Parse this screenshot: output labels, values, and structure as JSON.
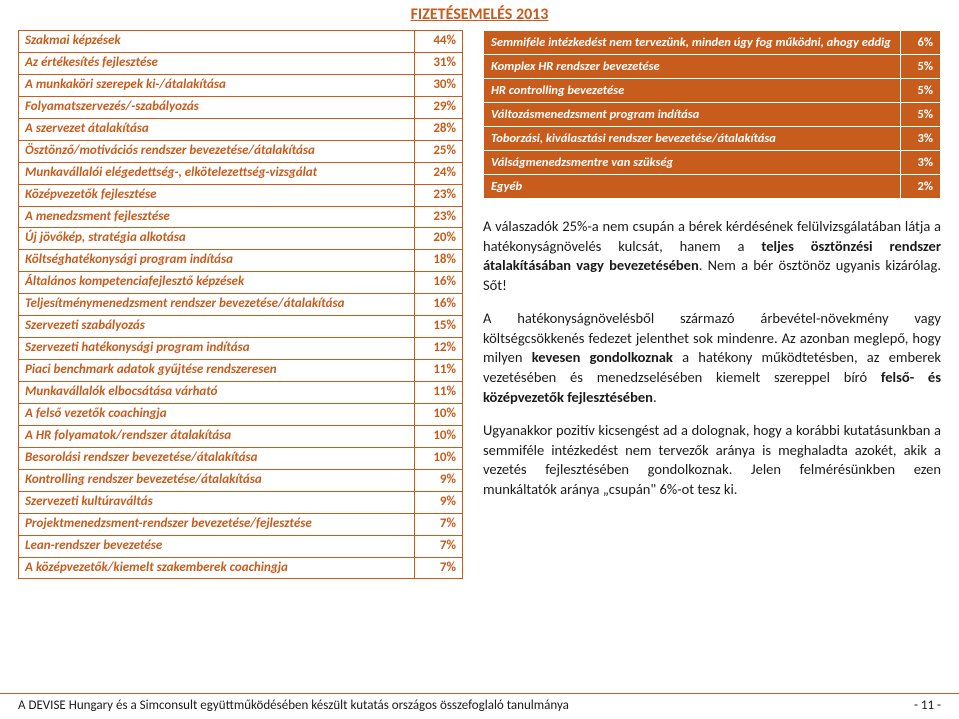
{
  "header": {
    "title": "FIZETÉSEMELÉS 2013"
  },
  "leftTable": {
    "rows": [
      {
        "label": "Szakmai képzések",
        "val": "44%"
      },
      {
        "label": "Az értékesítés fejlesztése",
        "val": "31%"
      },
      {
        "label": "A munkaköri szerepek ki-/átalakítása",
        "val": "30%"
      },
      {
        "label": "Folyamatszervezés/-szabályozás",
        "val": "29%"
      },
      {
        "label": "A szervezet átalakítása",
        "val": "28%"
      },
      {
        "label": "Ösztönző/motivációs rendszer bevezetése/átalakítása",
        "val": "25%"
      },
      {
        "label": "Munkavállalói elégedettség-, elkötelezettség-vizsgálat",
        "val": "24%"
      },
      {
        "label": "Középvezetők fejlesztése",
        "val": "23%"
      },
      {
        "label": "A menedzsment fejlesztése",
        "val": "23%"
      },
      {
        "label": "Új jövőkép, stratégia alkotása",
        "val": "20%"
      },
      {
        "label": "Költséghatékonysági program indítása",
        "val": "18%"
      },
      {
        "label": "Általános kompetenciafejlesztő képzések",
        "val": "16%"
      },
      {
        "label": "Teljesítménymenedzsment rendszer bevezetése/átalakítása",
        "val": "16%"
      },
      {
        "label": "Szervezeti szabályozás",
        "val": "15%"
      },
      {
        "label": "Szervezeti hatékonysági program indítása",
        "val": "12%"
      },
      {
        "label": "Piaci benchmark adatok gyűjtése rendszeresen",
        "val": "11%"
      },
      {
        "label": "Munkavállalók elbocsátása várható",
        "val": "11%"
      },
      {
        "label": "A felső vezetők coachingja",
        "val": "10%"
      },
      {
        "label": "A HR folyamatok/rendszer átalakítása",
        "val": "10%"
      },
      {
        "label": "Besorolási rendszer bevezetése/átalakítása",
        "val": "10%"
      },
      {
        "label": "Kontrolling rendszer bevezetése/átalakítása",
        "val": "9%"
      },
      {
        "label": "Szervezeti kultúraváltás",
        "val": "9%"
      },
      {
        "label": "Projektmenedzsment-rendszer bevezetése/fejlesztése",
        "val": "7%"
      },
      {
        "label": "Lean-rendszer bevezetése",
        "val": "7%"
      },
      {
        "label": "A középvezetők/kiemelt szakemberek coachingja",
        "val": "7%"
      }
    ]
  },
  "rightTable": {
    "rows": [
      {
        "label": "Semmiféle intézkedést nem tervezünk, minden úgy fog működni, ahogy eddig",
        "val": "6%"
      },
      {
        "label": "Komplex HR rendszer bevezetése",
        "val": "5%"
      },
      {
        "label": "HR controlling bevezetése",
        "val": "5%"
      },
      {
        "label": "Változásmenedzsment program indítása",
        "val": "5%"
      },
      {
        "label": "Toborzási, kiválasztási rendszer bevezetése/átalakítása",
        "val": "3%"
      },
      {
        "label": "Válságmenedzsmentre van szükség",
        "val": "3%"
      },
      {
        "label": "Egyéb",
        "val": "2%"
      }
    ]
  },
  "paragraphs": {
    "p1a": "A válaszadók 25%-a nem csupán a bérek kérdésének felülvizsgálatában látja a hatékonyságnövelés kulcsát, hanem a ",
    "p1b": "teljes ösztönzési rendszer átalakításában vagy bevezetésében",
    "p1c": ". Nem a bér ösztönöz ugyanis kizárólag. Sőt!",
    "p2a": "A hatékonyságnövelésből származó árbevétel-növekmény vagy költségcsökkenés fedezet jelenthet sok mindenre. Az azonban meglepő, hogy milyen ",
    "p2b": "kevesen gondolkoznak",
    "p2c": " a hatékony működtetésben, az emberek vezetésében és menedzselésében kiemelt szereppel bíró ",
    "p2d": "felső- és középvezetők fejlesztésében",
    "p2e": ".",
    "p3": "Ugyanakkor pozitív kicsengést ad a dolognak, hogy a korábbi kutatásunkban a semmiféle intézkedést nem tervezők aránya is meghaladta azokét, akik a vezetés fejlesztésében gondolkoznak. Jelen felmérésünkben ezen munkáltatók aránya „csupán\" 6%-ot tesz ki."
  },
  "footer": {
    "left": "A DEVISE Hungary és a Simconsult együttműködésében készült kutatás országos összefoglaló tanulmánya",
    "right": "- 11 -"
  }
}
